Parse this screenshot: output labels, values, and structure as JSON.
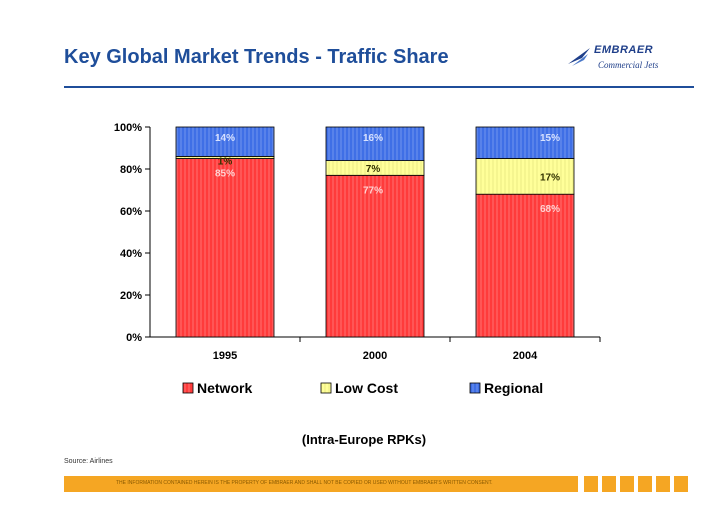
{
  "header": {
    "title": "Key Global Market Trends - Traffic Share",
    "logo_brand": "EMBRAER",
    "logo_sub": "Commercial Jets"
  },
  "chart_data": {
    "type": "bar",
    "stacked": true,
    "categories": [
      "1995",
      "2000",
      "2004"
    ],
    "series": [
      {
        "name": "Network",
        "values": [
          85,
          77,
          68
        ],
        "labels": [
          "85%",
          "77%",
          "68%"
        ],
        "color": "#ff3b3b"
      },
      {
        "name": "Low Cost",
        "values": [
          1,
          7,
          17
        ],
        "labels": [
          "1%",
          "7%",
          "17%"
        ],
        "color": "#ffff99"
      },
      {
        "name": "Regional",
        "values": [
          14,
          16,
          15
        ],
        "labels": [
          "14%",
          "16%",
          "15%"
        ],
        "color": "#3f6fe6"
      }
    ],
    "yticks": [
      "0%",
      "20%",
      "40%",
      "60%",
      "80%",
      "100%"
    ],
    "ylim": [
      0,
      100
    ],
    "legend_position": "bottom",
    "xlabel": "",
    "ylabel": ""
  },
  "unit_label": "(Intra-Europe RPKs)",
  "source": "Source: Airlines",
  "footer_notice": "THE INFORMATION CONTAINED HEREIN IS THE PROPERTY OF EMBRAER AND SHALL NOT BE COPIED OR USED WITHOUT EMBRAER'S WRITTEN CONSENT.",
  "colors": {
    "title": "#1f4e9a",
    "footer": "#f5a623"
  }
}
